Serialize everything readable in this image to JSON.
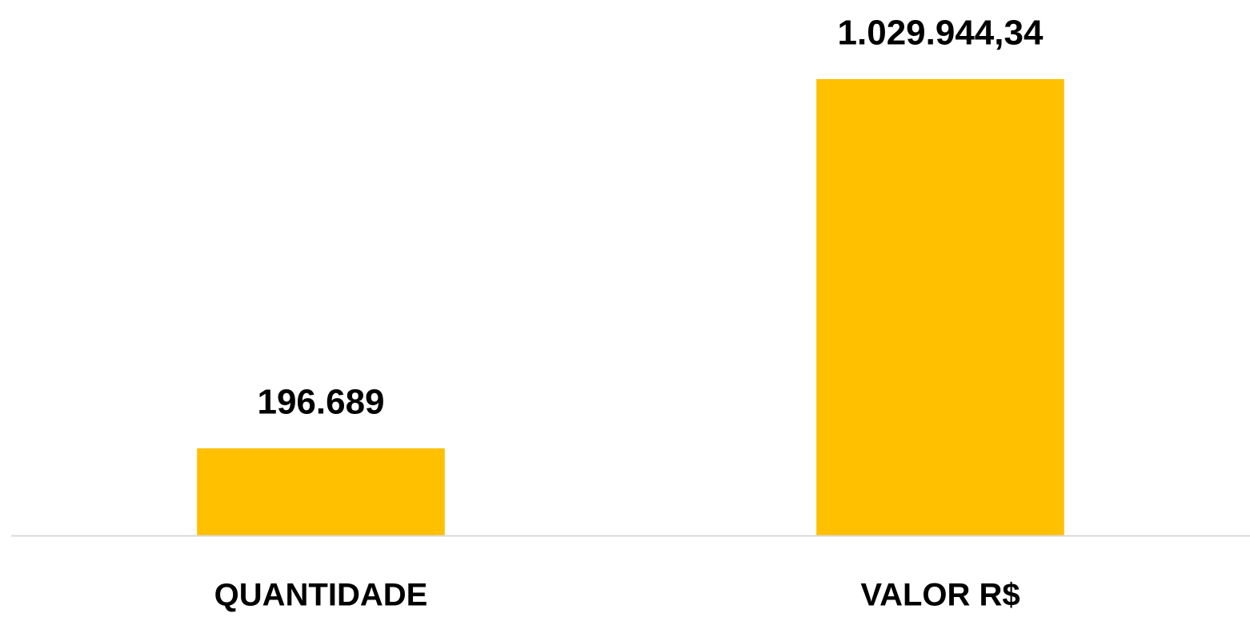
{
  "chart_data": {
    "type": "bar",
    "categories": [
      "QUANTIDADE",
      "VALOR R$"
    ],
    "values": [
      196689,
      1029944.34
    ],
    "value_labels": [
      "196.689",
      "1.029.944,34"
    ],
    "color": "#FFC000"
  }
}
